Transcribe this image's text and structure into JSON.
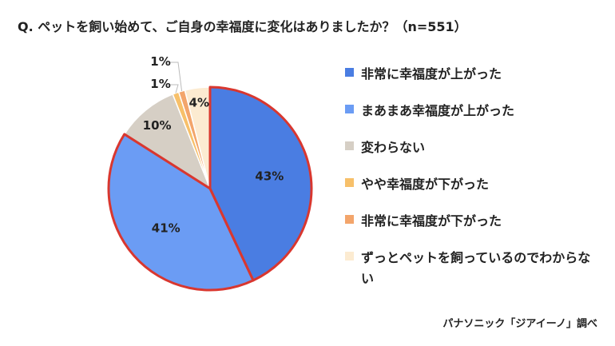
{
  "title": "Q. ペットを飼い始めて、ご自身の幸福度に変化はありましたか？（n=551）",
  "source": "パナソニック「ジアイーノ」調べ",
  "chart_data": {
    "type": "pie",
    "start_angle_deg": 0,
    "direction": "clockwise",
    "highlight_color": "#d9372f",
    "highlighted_slices": [
      0,
      1
    ],
    "slices": [
      {
        "label": "非常に幸福度が上がった",
        "value": 43,
        "display": "43%",
        "color": "#4a7de2"
      },
      {
        "label": "まあまあ幸福度が上がった",
        "value": 41,
        "display": "41%",
        "color": "#6b9cf4"
      },
      {
        "label": "変わらない",
        "value": 10,
        "display": "10%",
        "color": "#d6cfc5"
      },
      {
        "label": "やや幸福度が下がった",
        "value": 1,
        "display": "1%",
        "color": "#f7c06a"
      },
      {
        "label": "非常に幸福度が下がった",
        "value": 1,
        "display": "1%",
        "color": "#f3a56b"
      },
      {
        "label": "ずっとペットを飼っているのでわからない",
        "value": 4,
        "display": "4%",
        "color": "#fcebd1"
      }
    ],
    "legend_placement": "right"
  }
}
